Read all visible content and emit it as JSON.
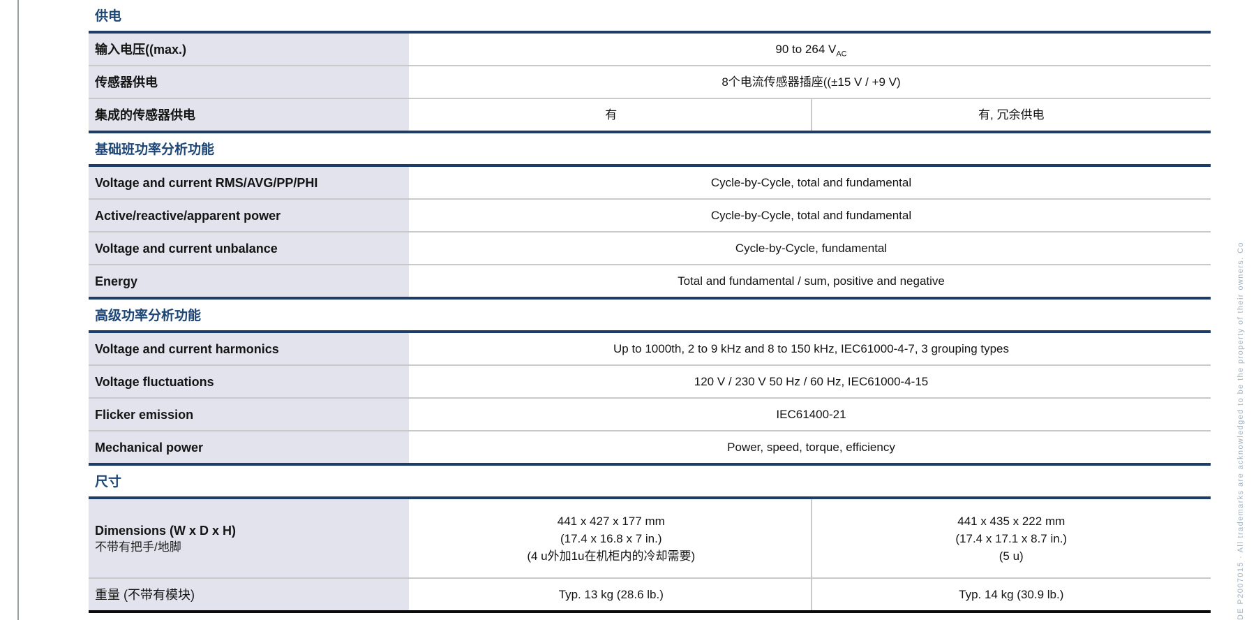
{
  "page": {
    "rotated_note": "DE P2007015 ∙ All trademarks are acknowledged to be the property of their owners. Co"
  },
  "table": {
    "sections": [
      {
        "title": "供电",
        "rows": [
          {
            "label": "输入电压((max.)",
            "values": [
              [
                {
                  "t": "90 to 264 V",
                  "sub": "AC"
                }
              ]
            ]
          },
          {
            "label": "传感器供电",
            "values": [
              [
                {
                  "t": "8个电流传感器插座((±15 V / +9 V)"
                }
              ]
            ]
          },
          {
            "label": "集成的传感器供电",
            "values": [
              [
                {
                  "t": "有"
                }
              ],
              [
                {
                  "t": "有, 冗余供电"
                }
              ]
            ]
          }
        ]
      },
      {
        "title": "基础班功率分析功能",
        "rows": [
          {
            "label": "Voltage and current RMS/AVG/PP/PHI",
            "values": [
              [
                {
                  "t": "Cycle-by-Cycle, total and fundamental"
                }
              ]
            ]
          },
          {
            "label": "Active/reactive/apparent power",
            "values": [
              [
                {
                  "t": "Cycle-by-Cycle, total and fundamental"
                }
              ]
            ]
          },
          {
            "label": "Voltage and current unbalance",
            "values": [
              [
                {
                  "t": "Cycle-by-Cycle, fundamental"
                }
              ]
            ]
          },
          {
            "label": "Energy",
            "values": [
              [
                {
                  "t": "Total and fundamental / sum, positive and negative"
                }
              ]
            ]
          }
        ]
      },
      {
        "title": "高级功率分析功能",
        "rows": [
          {
            "label": "Voltage and current harmonics",
            "values": [
              [
                {
                  "t": "Up to 1000th, 2 to 9 kHz and 8 to 150 kHz, IEC61000-4-7, 3 grouping types"
                }
              ]
            ]
          },
          {
            "label": "Voltage fluctuations",
            "values": [
              [
                {
                  "t": "120 V / 230 V 50 Hz / 60 Hz, IEC61000-4-15"
                }
              ]
            ]
          },
          {
            "label": "Flicker emission",
            "values": [
              [
                {
                  "t": "IEC61400-21"
                }
              ]
            ]
          },
          {
            "label": "Mechanical power",
            "values": [
              [
                {
                  "t": "Power, speed, torque, efficiency"
                }
              ]
            ]
          }
        ]
      },
      {
        "title": "尺寸",
        "rows": [
          {
            "label": "Dimensions (W x D x H)",
            "label2": "不带有把手/地脚",
            "tall": true,
            "values": [
              [
                {
                  "t": "441 x 427 x 177 mm"
                },
                {
                  "t": "(17.4 x 16.8 x 7 in.)"
                },
                {
                  "t": "(4 u外加1u在机柜内的冷却需要)"
                }
              ],
              [
                {
                  "t": "441 x 435 x 222 mm"
                },
                {
                  "t": "(17.4 x 17.1 x 8.7 in.)"
                },
                {
                  "t": "(5 u)"
                }
              ]
            ]
          },
          {
            "label": "重量 (不带有模块)",
            "bold": false,
            "values": [
              [
                {
                  "t": "Typ. 13 kg (28.6 lb.)"
                }
              ],
              [
                {
                  "t": "Typ. 14 kg (30.9 lb.)"
                }
              ]
            ]
          }
        ]
      }
    ]
  }
}
